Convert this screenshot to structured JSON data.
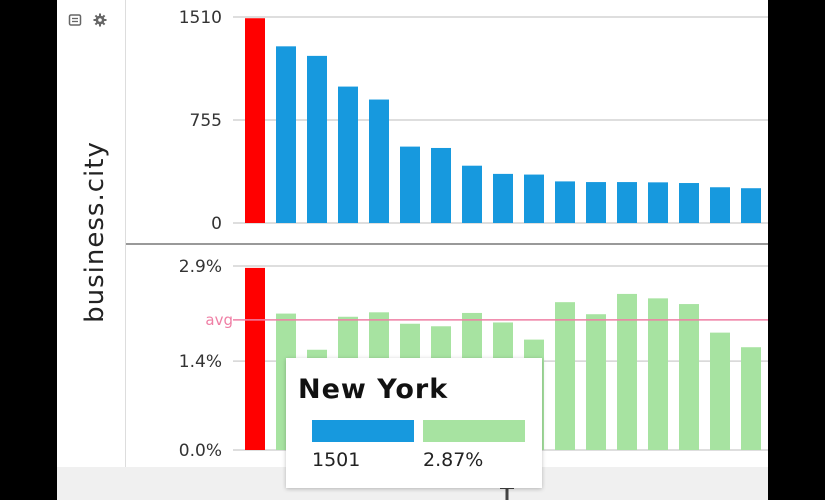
{
  "toolbar": {
    "icons": [
      "list-icon",
      "gear-icon"
    ]
  },
  "y_axis_label": "business.city",
  "chart_data": [
    {
      "type": "bar",
      "metric": "count",
      "ylim": [
        0,
        1510
      ],
      "y_ticks": [
        "1510",
        "755",
        "0"
      ],
      "y_tick_values": [
        1510,
        755,
        0
      ],
      "values": [
        1501,
        1295,
        1225,
        1000,
        905,
        560,
        550,
        420,
        360,
        355,
        305,
        300,
        300,
        298,
        293,
        262,
        255
      ],
      "highlight_index": 0,
      "color": "#1799de",
      "highlight_color": "#ff0000",
      "grid": true
    },
    {
      "type": "bar",
      "metric": "percent",
      "ylim": [
        0,
        2.9
      ],
      "y_ticks": [
        "2.9%",
        "1.4%",
        "0.0%"
      ],
      "y_tick_values": [
        2.9,
        1.4,
        0.0
      ],
      "values": [
        2.87,
        2.15,
        1.58,
        2.1,
        2.17,
        1.99,
        1.95,
        2.16,
        2.01,
        1.74,
        2.33,
        2.14,
        2.46,
        2.39,
        2.3,
        1.85,
        1.62
      ],
      "avg_value": 2.05,
      "avg_label": "avg",
      "highlight_index": 0,
      "color": "#a7e3a1",
      "highlight_color": "#ff0000",
      "avg_color": "#ef7fa5",
      "grid": true
    }
  ],
  "tooltip": {
    "title": "New York",
    "count_value": "1501",
    "percent_value": "2.87%",
    "count_color": "#1799de",
    "percent_color": "#a7e3a1"
  }
}
